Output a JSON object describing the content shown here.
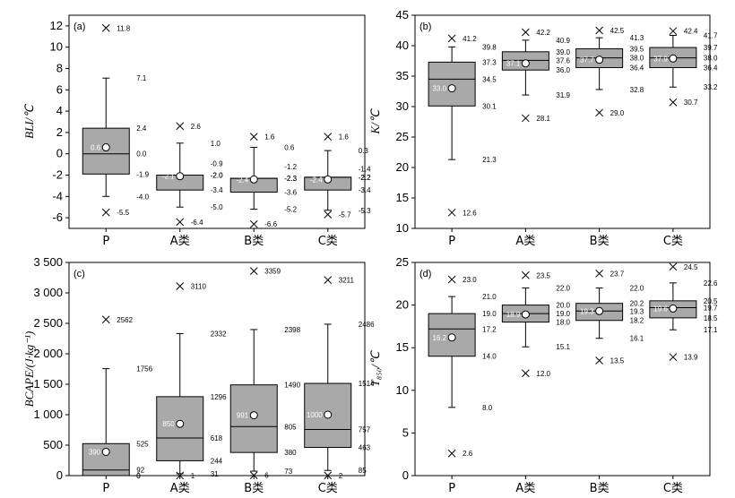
{
  "chart_data": [
    {
      "panel": "(a)",
      "type": "box",
      "ylabel": "BLI/℃",
      "ylim": [
        -7,
        13
      ],
      "yticks": [
        -6,
        -4,
        -2,
        0,
        2,
        4,
        6,
        8,
        10,
        12
      ],
      "categories": [
        "P",
        "A类",
        "B类",
        "C类"
      ],
      "boxes": [
        {
          "max_outlier": 11.8,
          "whisker_high": 7.1,
          "q3": 2.4,
          "median": 0.0,
          "mean": 0.6,
          "mean_label": "0.6",
          "q1": -1.9,
          "whisker_low": -4.0,
          "min_outlier": -5.5,
          "extra_labels": []
        },
        {
          "max_outlier": 2.6,
          "whisker_high": 1.0,
          "q3": -2.0,
          "median": -2.0,
          "mean": -2.1,
          "mean_label": "-2.1",
          "q1": -3.4,
          "whisker_low": -5.0,
          "min_outlier": -6.4,
          "extra_labels": [
            -0.9
          ]
        },
        {
          "max_outlier": 1.6,
          "whisker_high": 0.6,
          "q3": -2.3,
          "median": -2.3,
          "mean": -2.4,
          "mean_label": "-2.4",
          "q1": -3.6,
          "whisker_low": -5.2,
          "min_outlier": -6.6,
          "extra_labels": [
            -1.2
          ]
        },
        {
          "max_outlier": 1.6,
          "whisker_high": 0.3,
          "q3": -2.2,
          "median": -2.2,
          "mean": -2.4,
          "mean_label": "-2.4",
          "q1": -3.4,
          "whisker_low": -5.3,
          "min_outlier": -5.7,
          "extra_labels": [
            -1.4
          ]
        }
      ]
    },
    {
      "panel": "(b)",
      "type": "box",
      "ylabel": "K/℃",
      "ylim": [
        10,
        45
      ],
      "yticks": [
        10,
        15,
        20,
        25,
        30,
        35,
        40,
        45
      ],
      "categories": [
        "P",
        "A类",
        "B类",
        "C类"
      ],
      "boxes": [
        {
          "max_outlier": 41.2,
          "whisker_high": 39.8,
          "q3": 37.3,
          "median": 34.5,
          "mean": 33.0,
          "mean_label": "33.0",
          "q1": 30.1,
          "whisker_low": 21.3,
          "min_outlier": 12.6,
          "extra_labels": []
        },
        {
          "max_outlier": 42.2,
          "whisker_high": 40.9,
          "q3": 39.0,
          "median": 37.6,
          "mean": 37.1,
          "mean_label": "37.1",
          "q1": 36.0,
          "whisker_low": 31.9,
          "min_outlier": 28.1,
          "extra_labels": []
        },
        {
          "max_outlier": 42.5,
          "whisker_high": 41.3,
          "q3": 39.5,
          "median": 38.0,
          "mean": 37.7,
          "mean_label": "37.7",
          "q1": 36.4,
          "whisker_low": 32.8,
          "min_outlier": 29.0,
          "extra_labels": []
        },
        {
          "max_outlier": 42.4,
          "whisker_high": 41.7,
          "q3": 39.7,
          "median": 38.0,
          "mean": 37.9,
          "mean_label": "37.9",
          "q1": 36.4,
          "whisker_low": 33.2,
          "min_outlier": 30.7,
          "extra_labels": []
        }
      ]
    },
    {
      "panel": "(c)",
      "type": "box",
      "ylabel": "BCAPE/(J·kg⁻¹)",
      "ylim": [
        0,
        3500
      ],
      "yticks": [
        0,
        500,
        1000,
        1500,
        2000,
        2500,
        3000,
        3500
      ],
      "ytick_labels": [
        "0",
        "500",
        "1 000",
        "1 500",
        "2 000",
        "2 500",
        "3 000",
        "3 500"
      ],
      "categories": [
        "P",
        "A类",
        "B类",
        "C类"
      ],
      "boxes": [
        {
          "max_outlier": 2562,
          "whisker_high": 1756,
          "q3": 525,
          "median": 92,
          "mean": 390,
          "mean_label": "390",
          "q1": 0,
          "whisker_low": 0,
          "min_outlier": null,
          "extra_labels": []
        },
        {
          "max_outlier": 3110,
          "whisker_high": 2332,
          "q3": 1296,
          "median": 618,
          "mean": 850,
          "mean_label": "850",
          "q1": 244,
          "whisker_low": 31,
          "min_outlier": 1,
          "extra_labels": []
        },
        {
          "max_outlier": 3359,
          "whisker_high": 2398,
          "q3": 1490,
          "median": 805,
          "mean": 991,
          "mean_label": "991",
          "q1": 380,
          "whisker_low": 73,
          "min_outlier": 6,
          "extra_labels": []
        },
        {
          "max_outlier": 3211,
          "whisker_high": 2486,
          "q3": 1514,
          "median": 757,
          "mean": 1000,
          "mean_label": "1000",
          "q1": 463,
          "whisker_low": 85,
          "min_outlier": 2,
          "extra_labels": []
        }
      ]
    },
    {
      "panel": "(d)",
      "type": "box",
      "ylabel": "T₈₅₀/℃",
      "ylim": [
        0,
        25
      ],
      "yticks": [
        0,
        5,
        10,
        15,
        20,
        25
      ],
      "categories": [
        "P",
        "A类",
        "B类",
        "C类"
      ],
      "boxes": [
        {
          "max_outlier": 23.0,
          "whisker_high": 21.0,
          "q3": 19.0,
          "median": 17.2,
          "mean": 16.2,
          "mean_label": "16.2",
          "q1": 14.0,
          "whisker_low": 8.0,
          "min_outlier": 2.6,
          "extra_labels": []
        },
        {
          "max_outlier": 23.5,
          "whisker_high": 22.0,
          "q3": 20.0,
          "median": 19.0,
          "mean": 18.9,
          "mean_label": "18.9",
          "q1": 18.0,
          "whisker_low": 15.1,
          "min_outlier": 12.0,
          "extra_labels": []
        },
        {
          "max_outlier": 23.7,
          "whisker_high": 22.0,
          "q3": 20.2,
          "median": 19.3,
          "mean": 19.3,
          "mean_label": "19.3",
          "q1": 18.2,
          "whisker_low": 16.1,
          "min_outlier": 13.5,
          "extra_labels": []
        },
        {
          "max_outlier": 24.5,
          "whisker_high": 22.6,
          "q3": 20.5,
          "median": 19.7,
          "mean": 19.6,
          "mean_label": "19.6",
          "q1": 18.5,
          "whisker_low": 17.1,
          "min_outlier": 13.9,
          "extra_labels": []
        }
      ]
    }
  ]
}
